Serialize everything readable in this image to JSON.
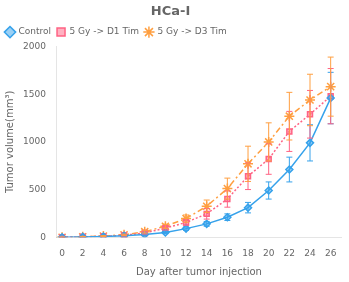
{
  "chart_data": {
    "type": "line",
    "title": "HCa-I",
    "xlabel": "Day after tumor injection",
    "ylabel": "Tumor volume(mm³)",
    "x": [
      0,
      2,
      4,
      6,
      8,
      10,
      12,
      14,
      16,
      18,
      20,
      22,
      24,
      26
    ],
    "series": [
      {
        "name": "Control",
        "marker": "diamond",
        "line_style": "solid",
        "values": [
          0,
          3,
          7,
          15,
          28,
          50,
          90,
          140,
          210,
          310,
          490,
          710,
          990,
          1460
        ],
        "errors": [
          0,
          2,
          3,
          5,
          8,
          12,
          18,
          25,
          35,
          55,
          90,
          130,
          190,
          270
        ]
      },
      {
        "name": "5 Gy -> D1 Tim",
        "marker": "square",
        "line_style": "dotted",
        "values": [
          0,
          4,
          9,
          20,
          45,
          95,
          155,
          245,
          400,
          640,
          820,
          1110,
          1290,
          1480
        ],
        "errors": [
          0,
          2,
          4,
          7,
          12,
          20,
          30,
          55,
          85,
          140,
          160,
          210,
          250,
          290
        ]
      },
      {
        "name": "5 Gy -> D3 Tim",
        "marker": "star",
        "line_style": "dashdot",
        "values": [
          0,
          5,
          12,
          25,
          58,
          115,
          195,
          325,
          510,
          770,
          1000,
          1270,
          1440,
          1580
        ],
        "errors": [
          0,
          3,
          5,
          8,
          14,
          22,
          38,
          65,
          110,
          185,
          200,
          250,
          270,
          310
        ]
      }
    ],
    "xlim": [
      -0.5,
      27
    ],
    "ylim": [
      0,
      2000
    ],
    "xticks": [
      0,
      2,
      4,
      6,
      8,
      10,
      12,
      14,
      16,
      18,
      20,
      22,
      24,
      26
    ],
    "yticks": [
      0,
      500,
      1000,
      1500,
      2000
    ],
    "grid": false,
    "legend": "upper left"
  }
}
